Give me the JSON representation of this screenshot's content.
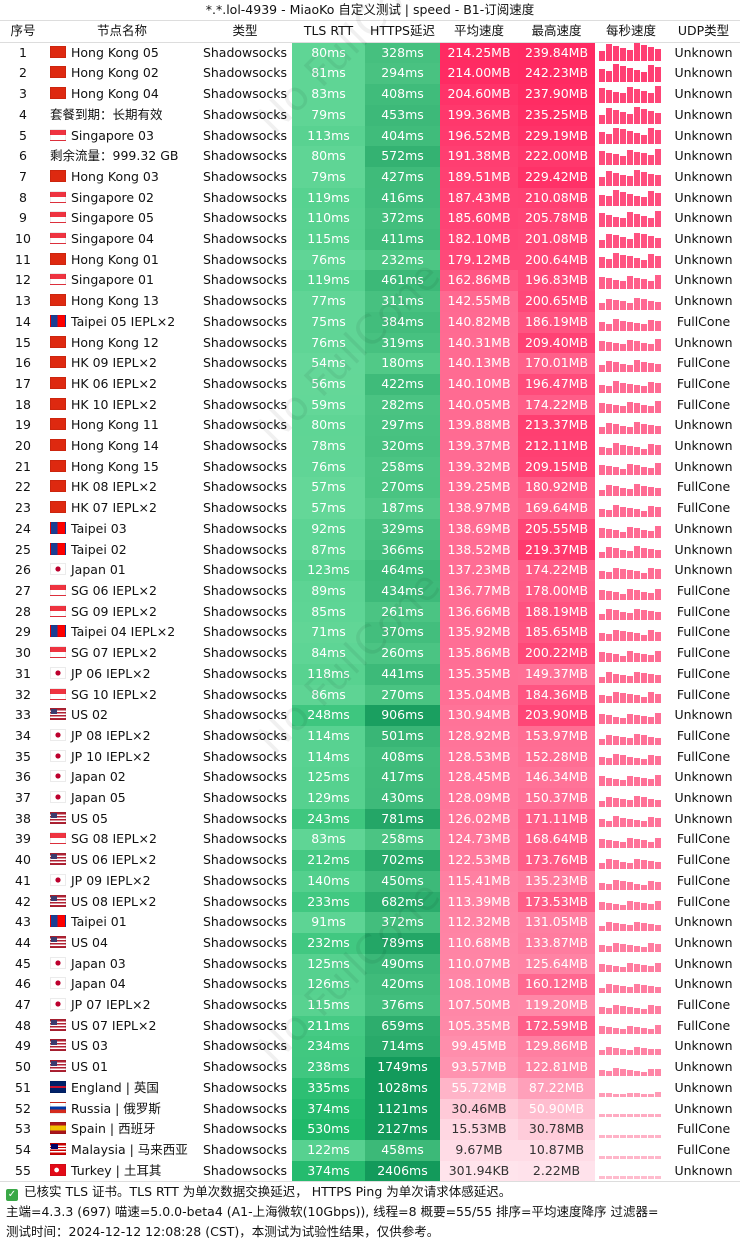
{
  "title": "*.*.lol-4939 - MiaoKo 自定义测试 | speed - B1-订阅速度",
  "headers": {
    "idx": "序号",
    "name": "节点名称",
    "type": "类型",
    "tls": "TLS RTT",
    "https": "HTTPS延迟",
    "avg": "平均速度",
    "max": "最高速度",
    "per": "每秒速度",
    "udp": "UDP类型"
  },
  "rows": [
    {
      "i": "1",
      "flag": "hk",
      "name": "Hong Kong 05",
      "type": "Shadowsocks",
      "tls": "80ms",
      "https": "328ms",
      "avg": "214.25MB",
      "max": "239.84MB",
      "udp": "Unknown"
    },
    {
      "i": "2",
      "flag": "hk",
      "name": "Hong Kong 02",
      "type": "Shadowsocks",
      "tls": "81ms",
      "https": "294ms",
      "avg": "214.00MB",
      "max": "242.23MB",
      "udp": "Unknown"
    },
    {
      "i": "3",
      "flag": "hk",
      "name": "Hong Kong 04",
      "type": "Shadowsocks",
      "tls": "83ms",
      "https": "408ms",
      "avg": "204.60MB",
      "max": "237.90MB",
      "udp": "Unknown"
    },
    {
      "i": "4",
      "flag": "",
      "name": "套餐到期：长期有效",
      "type": "Shadowsocks",
      "tls": "79ms",
      "https": "453ms",
      "avg": "199.36MB",
      "max": "235.25MB",
      "udp": "Unknown"
    },
    {
      "i": "5",
      "flag": "sg",
      "name": "Singapore 03",
      "type": "Shadowsocks",
      "tls": "113ms",
      "https": "404ms",
      "avg": "196.52MB",
      "max": "229.19MB",
      "udp": "Unknown"
    },
    {
      "i": "6",
      "flag": "",
      "name": "剩余流量：999.32 GB",
      "type": "Shadowsocks",
      "tls": "80ms",
      "https": "572ms",
      "avg": "191.38MB",
      "max": "222.00MB",
      "udp": "Unknown"
    },
    {
      "i": "7",
      "flag": "hk",
      "name": "Hong Kong 03",
      "type": "Shadowsocks",
      "tls": "79ms",
      "https": "427ms",
      "avg": "189.51MB",
      "max": "229.42MB",
      "udp": "Unknown"
    },
    {
      "i": "8",
      "flag": "sg",
      "name": "Singapore 02",
      "type": "Shadowsocks",
      "tls": "119ms",
      "https": "416ms",
      "avg": "187.43MB",
      "max": "210.08MB",
      "udp": "Unknown"
    },
    {
      "i": "9",
      "flag": "sg",
      "name": "Singapore 05",
      "type": "Shadowsocks",
      "tls": "110ms",
      "https": "372ms",
      "avg": "185.60MB",
      "max": "205.78MB",
      "udp": "Unknown"
    },
    {
      "i": "10",
      "flag": "sg",
      "name": "Singapore 04",
      "type": "Shadowsocks",
      "tls": "115ms",
      "https": "411ms",
      "avg": "182.10MB",
      "max": "201.08MB",
      "udp": "Unknown"
    },
    {
      "i": "11",
      "flag": "hk",
      "name": "Hong Kong 01",
      "type": "Shadowsocks",
      "tls": "76ms",
      "https": "232ms",
      "avg": "179.12MB",
      "max": "200.64MB",
      "udp": "Unknown"
    },
    {
      "i": "12",
      "flag": "sg",
      "name": "Singapore 01",
      "type": "Shadowsocks",
      "tls": "119ms",
      "https": "461ms",
      "avg": "162.86MB",
      "max": "196.83MB",
      "udp": "Unknown"
    },
    {
      "i": "13",
      "flag": "hk",
      "name": "Hong Kong 13",
      "type": "Shadowsocks",
      "tls": "77ms",
      "https": "311ms",
      "avg": "142.55MB",
      "max": "200.65MB",
      "udp": "Unknown"
    },
    {
      "i": "14",
      "flag": "tw",
      "name": "Taipei 05 IEPL×2",
      "type": "Shadowsocks",
      "tls": "75ms",
      "https": "384ms",
      "avg": "140.82MB",
      "max": "186.19MB",
      "udp": "FullCone"
    },
    {
      "i": "15",
      "flag": "hk",
      "name": "Hong Kong 12",
      "type": "Shadowsocks",
      "tls": "76ms",
      "https": "319ms",
      "avg": "140.31MB",
      "max": "209.40MB",
      "udp": "Unknown"
    },
    {
      "i": "16",
      "flag": "hk",
      "name": "HK 09 IEPL×2",
      "type": "Shadowsocks",
      "tls": "54ms",
      "https": "180ms",
      "avg": "140.13MB",
      "max": "170.01MB",
      "udp": "FullCone"
    },
    {
      "i": "17",
      "flag": "hk",
      "name": "HK 06 IEPL×2",
      "type": "Shadowsocks",
      "tls": "56ms",
      "https": "422ms",
      "avg": "140.10MB",
      "max": "196.47MB",
      "udp": "FullCone"
    },
    {
      "i": "18",
      "flag": "hk",
      "name": "HK 10 IEPL×2",
      "type": "Shadowsocks",
      "tls": "59ms",
      "https": "282ms",
      "avg": "140.05MB",
      "max": "174.22MB",
      "udp": "FullCone"
    },
    {
      "i": "19",
      "flag": "hk",
      "name": "Hong Kong 11",
      "type": "Shadowsocks",
      "tls": "80ms",
      "https": "297ms",
      "avg": "139.88MB",
      "max": "213.37MB",
      "udp": "Unknown"
    },
    {
      "i": "20",
      "flag": "hk",
      "name": "Hong Kong 14",
      "type": "Shadowsocks",
      "tls": "78ms",
      "https": "320ms",
      "avg": "139.37MB",
      "max": "212.11MB",
      "udp": "Unknown"
    },
    {
      "i": "21",
      "flag": "hk",
      "name": "Hong Kong 15",
      "type": "Shadowsocks",
      "tls": "76ms",
      "https": "258ms",
      "avg": "139.32MB",
      "max": "209.15MB",
      "udp": "Unknown"
    },
    {
      "i": "22",
      "flag": "hk",
      "name": "HK 08 IEPL×2",
      "type": "Shadowsocks",
      "tls": "57ms",
      "https": "270ms",
      "avg": "139.25MB",
      "max": "180.92MB",
      "udp": "FullCone"
    },
    {
      "i": "23",
      "flag": "hk",
      "name": "HK 07 IEPL×2",
      "type": "Shadowsocks",
      "tls": "57ms",
      "https": "187ms",
      "avg": "138.97MB",
      "max": "169.64MB",
      "udp": "FullCone"
    },
    {
      "i": "24",
      "flag": "tw",
      "name": "Taipei 03",
      "type": "Shadowsocks",
      "tls": "92ms",
      "https": "329ms",
      "avg": "138.69MB",
      "max": "205.55MB",
      "udp": "Unknown"
    },
    {
      "i": "25",
      "flag": "tw",
      "name": "Taipei 02",
      "type": "Shadowsocks",
      "tls": "87ms",
      "https": "366ms",
      "avg": "138.52MB",
      "max": "219.37MB",
      "udp": "Unknown"
    },
    {
      "i": "26",
      "flag": "jp",
      "name": "Japan 01",
      "type": "Shadowsocks",
      "tls": "123ms",
      "https": "464ms",
      "avg": "137.23MB",
      "max": "174.22MB",
      "udp": "Unknown"
    },
    {
      "i": "27",
      "flag": "sg",
      "name": "SG 06 IEPL×2",
      "type": "Shadowsocks",
      "tls": "89ms",
      "https": "434ms",
      "avg": "136.77MB",
      "max": "178.00MB",
      "udp": "FullCone"
    },
    {
      "i": "28",
      "flag": "sg",
      "name": "SG 09 IEPL×2",
      "type": "Shadowsocks",
      "tls": "85ms",
      "https": "261ms",
      "avg": "136.66MB",
      "max": "188.19MB",
      "udp": "FullCone"
    },
    {
      "i": "29",
      "flag": "tw",
      "name": "Taipei 04 IEPL×2",
      "type": "Shadowsocks",
      "tls": "71ms",
      "https": "370ms",
      "avg": "135.92MB",
      "max": "185.65MB",
      "udp": "FullCone"
    },
    {
      "i": "30",
      "flag": "sg",
      "name": "SG 07 IEPL×2",
      "type": "Shadowsocks",
      "tls": "84ms",
      "https": "260ms",
      "avg": "135.86MB",
      "max": "200.22MB",
      "udp": "FullCone"
    },
    {
      "i": "31",
      "flag": "jp",
      "name": "JP 06 IEPL×2",
      "type": "Shadowsocks",
      "tls": "118ms",
      "https": "441ms",
      "avg": "135.35MB",
      "max": "149.37MB",
      "udp": "FullCone"
    },
    {
      "i": "32",
      "flag": "sg",
      "name": "SG 10 IEPL×2",
      "type": "Shadowsocks",
      "tls": "86ms",
      "https": "270ms",
      "avg": "135.04MB",
      "max": "184.36MB",
      "udp": "FullCone"
    },
    {
      "i": "33",
      "flag": "us",
      "name": "US 02",
      "type": "Shadowsocks",
      "tls": "248ms",
      "https": "906ms",
      "avg": "130.94MB",
      "max": "203.90MB",
      "udp": "Unknown"
    },
    {
      "i": "34",
      "flag": "jp",
      "name": "JP 08 IEPL×2",
      "type": "Shadowsocks",
      "tls": "114ms",
      "https": "501ms",
      "avg": "128.92MB",
      "max": "153.97MB",
      "udp": "FullCone"
    },
    {
      "i": "35",
      "flag": "jp",
      "name": "JP 10 IEPL×2",
      "type": "Shadowsocks",
      "tls": "114ms",
      "https": "408ms",
      "avg": "128.53MB",
      "max": "152.28MB",
      "udp": "FullCone"
    },
    {
      "i": "36",
      "flag": "jp",
      "name": "Japan 02",
      "type": "Shadowsocks",
      "tls": "125ms",
      "https": "417ms",
      "avg": "128.45MB",
      "max": "146.34MB",
      "udp": "Unknown"
    },
    {
      "i": "37",
      "flag": "jp",
      "name": "Japan 05",
      "type": "Shadowsocks",
      "tls": "129ms",
      "https": "430ms",
      "avg": "128.09MB",
      "max": "150.37MB",
      "udp": "Unknown"
    },
    {
      "i": "38",
      "flag": "us",
      "name": "US 05",
      "type": "Shadowsocks",
      "tls": "243ms",
      "https": "781ms",
      "avg": "126.02MB",
      "max": "171.11MB",
      "udp": "Unknown"
    },
    {
      "i": "39",
      "flag": "sg",
      "name": "SG 08 IEPL×2",
      "type": "Shadowsocks",
      "tls": "83ms",
      "https": "258ms",
      "avg": "124.73MB",
      "max": "168.64MB",
      "udp": "FullCone"
    },
    {
      "i": "40",
      "flag": "us",
      "name": "US 06 IEPL×2",
      "type": "Shadowsocks",
      "tls": "212ms",
      "https": "702ms",
      "avg": "122.53MB",
      "max": "173.76MB",
      "udp": "FullCone"
    },
    {
      "i": "41",
      "flag": "jp",
      "name": "JP 09 IEPL×2",
      "type": "Shadowsocks",
      "tls": "140ms",
      "https": "450ms",
      "avg": "115.41MB",
      "max": "135.23MB",
      "udp": "FullCone"
    },
    {
      "i": "42",
      "flag": "us",
      "name": "US 08 IEPL×2",
      "type": "Shadowsocks",
      "tls": "233ms",
      "https": "682ms",
      "avg": "113.39MB",
      "max": "173.53MB",
      "udp": "FullCone"
    },
    {
      "i": "43",
      "flag": "tw",
      "name": "Taipei 01",
      "type": "Shadowsocks",
      "tls": "91ms",
      "https": "372ms",
      "avg": "112.32MB",
      "max": "131.05MB",
      "udp": "Unknown"
    },
    {
      "i": "44",
      "flag": "us",
      "name": "US 04",
      "type": "Shadowsocks",
      "tls": "232ms",
      "https": "789ms",
      "avg": "110.68MB",
      "max": "133.87MB",
      "udp": "Unknown"
    },
    {
      "i": "45",
      "flag": "jp",
      "name": "Japan 03",
      "type": "Shadowsocks",
      "tls": "125ms",
      "https": "490ms",
      "avg": "110.07MB",
      "max": "125.64MB",
      "udp": "Unknown"
    },
    {
      "i": "46",
      "flag": "jp",
      "name": "Japan 04",
      "type": "Shadowsocks",
      "tls": "126ms",
      "https": "420ms",
      "avg": "108.10MB",
      "max": "160.12MB",
      "udp": "Unknown"
    },
    {
      "i": "47",
      "flag": "jp",
      "name": "JP 07 IEPL×2",
      "type": "Shadowsocks",
      "tls": "115ms",
      "https": "376ms",
      "avg": "107.50MB",
      "max": "119.20MB",
      "udp": "FullCone"
    },
    {
      "i": "48",
      "flag": "us",
      "name": "US 07 IEPL×2",
      "type": "Shadowsocks",
      "tls": "211ms",
      "https": "659ms",
      "avg": "105.35MB",
      "max": "172.59MB",
      "udp": "FullCone"
    },
    {
      "i": "49",
      "flag": "us",
      "name": "US 03",
      "type": "Shadowsocks",
      "tls": "234ms",
      "https": "714ms",
      "avg": "99.45MB",
      "max": "129.86MB",
      "udp": "Unknown"
    },
    {
      "i": "50",
      "flag": "us",
      "name": "US 01",
      "type": "Shadowsocks",
      "tls": "238ms",
      "https": "1749ms",
      "avg": "93.57MB",
      "max": "122.81MB",
      "udp": "Unknown"
    },
    {
      "i": "51",
      "flag": "gb",
      "name": "England | 英国",
      "type": "Shadowsocks",
      "tls": "335ms",
      "https": "1028ms",
      "avg": "55.72MB",
      "max": "87.22MB",
      "udp": "Unknown"
    },
    {
      "i": "52",
      "flag": "ru",
      "name": "Russia | 俄罗斯",
      "type": "Shadowsocks",
      "tls": "374ms",
      "https": "1121ms",
      "avg": "30.46MB",
      "max": "50.90MB",
      "udp": "Unknown"
    },
    {
      "i": "53",
      "flag": "es",
      "name": "Spain | 西班牙",
      "type": "Shadowsocks",
      "tls": "530ms",
      "https": "2127ms",
      "avg": "15.53MB",
      "max": "30.78MB",
      "udp": "FullCone"
    },
    {
      "i": "54",
      "flag": "my",
      "name": "Malaysia | 马来西亚",
      "type": "Shadowsocks",
      "tls": "122ms",
      "https": "458ms",
      "avg": "9.67MB",
      "max": "10.87MB",
      "udp": "FullCone"
    },
    {
      "i": "55",
      "flag": "tr",
      "name": "Turkey | 土耳其",
      "type": "Shadowsocks",
      "tls": "374ms",
      "https": "2406ms",
      "avg": "301.94KB",
      "max": "2.22MB",
      "udp": "Unknown"
    }
  ],
  "footer": {
    "line1": "已核实 TLS 证书。TLS RTT 为单次数据交换延迟， HTTPS Ping 为单次请求体感延迟。",
    "line2": "主端=4.3.3 (697) 喵速=5.0.0-beta4 (A1-上海微软(10Gbps)), 线程=8 概要=55/55 排序=平均速度降序 过滤器=",
    "line3": "测试时间：2024-12-12 12:08:28 (CST)，本测试为试验性结果，仅供参考。"
  },
  "colors": {
    "tls_good": "#3cc77d",
    "tls_mid": "#5cd494",
    "https_dark": "#18a865",
    "https_mid": "#2fc174",
    "speed_hi": "#ff1f5a",
    "speed_lo": "#ffd0dd",
    "spark": "#ff3f73"
  },
  "watermark": "No FullCone"
}
